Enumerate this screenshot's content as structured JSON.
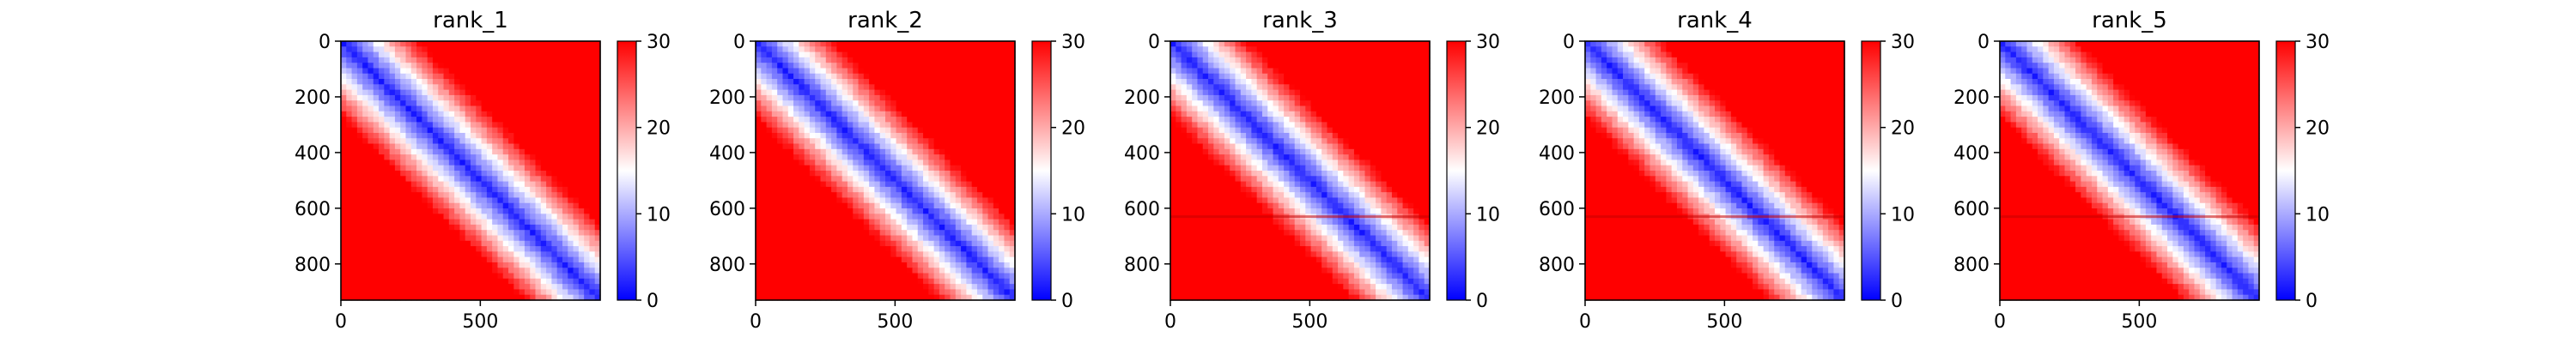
{
  "chart_data": {
    "type": "heatmap",
    "colormap": "bwr",
    "color_range": [
      0,
      30
    ],
    "colorbar_ticks": [
      "0",
      "10",
      "20",
      "30"
    ],
    "x_ticks": [
      {
        "value": 0,
        "label": "0"
      },
      {
        "value": 500,
        "label": "500"
      }
    ],
    "y_ticks": [
      {
        "value": 0,
        "label": "0"
      },
      {
        "value": 200,
        "label": "200"
      },
      {
        "value": 400,
        "label": "400"
      },
      {
        "value": 600,
        "label": "600"
      },
      {
        "value": 800,
        "label": "800"
      }
    ],
    "xlim": [
      0,
      930
    ],
    "ylim": [
      930,
      0
    ],
    "description": "Pairwise distance-style matrices: low values (blue) along the main diagonal, increasing to high values (red) away from it",
    "panels": [
      {
        "title": "rank_1",
        "line_rows": []
      },
      {
        "title": "rank_2",
        "line_rows": []
      },
      {
        "title": "rank_3",
        "line_rows": [
          630
        ]
      },
      {
        "title": "rank_4",
        "line_rows": [
          630
        ]
      },
      {
        "title": "rank_5",
        "line_rows": [
          630
        ]
      }
    ]
  }
}
